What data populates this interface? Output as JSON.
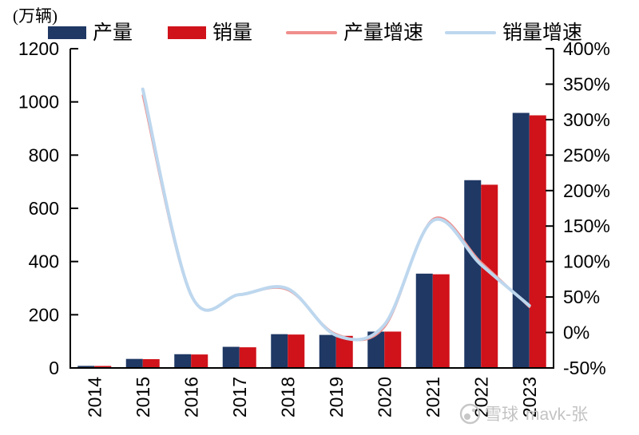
{
  "unit_label": "(万辆)",
  "legend": {
    "items": [
      {
        "label": "产量",
        "type": "bar",
        "color": "#1f3864"
      },
      {
        "label": "销量",
        "type": "bar",
        "color": "#d0121a"
      },
      {
        "label": "产量增速",
        "type": "line",
        "color": "#ef8f8c"
      },
      {
        "label": "销量增速",
        "type": "line",
        "color": "#bdd7ee"
      }
    ]
  },
  "watermark": {
    "site": "雪球",
    "user": "mavk-张"
  },
  "chart_data": {
    "type": "bar",
    "subtype": "bar+line combo, dual axis",
    "title": "",
    "categories": [
      "2014",
      "2015",
      "2016",
      "2017",
      "2018",
      "2019",
      "2020",
      "2021",
      "2022",
      "2023"
    ],
    "bar_series": [
      {
        "name": "产量",
        "axis": "left",
        "color": "#1f3864",
        "values": [
          7.8,
          34.0,
          51.7,
          79.4,
          127.0,
          124.2,
          136.6,
          354.5,
          705.8,
          958.7
        ]
      },
      {
        "name": "销量",
        "axis": "left",
        "color": "#d0121a",
        "values": [
          7.5,
          33.1,
          50.7,
          77.7,
          125.6,
          120.6,
          136.7,
          352.1,
          688.7,
          949.5
        ]
      }
    ],
    "line_series": [
      {
        "name": "产量增速",
        "axis": "right",
        "color": "#ef8f8c",
        "stroke_width": 2.6,
        "values_pct": [
          null,
          334,
          51.7,
          53.8,
          59.9,
          -2.2,
          7.5,
          159.5,
          99.1,
          35.8
        ]
      },
      {
        "name": "销量增速",
        "axis": "right",
        "color": "#bdd7ee",
        "stroke_width": 4,
        "values_pct": [
          null,
          343,
          53.0,
          53.3,
          61.7,
          -4.0,
          10.9,
          157.5,
          95.6,
          37.9
        ]
      }
    ],
    "left_axis": {
      "unit": "万辆",
      "min": 0,
      "max": 1200,
      "tick_labels": [
        "0",
        "200",
        "400",
        "600",
        "800",
        "1000",
        "1200"
      ]
    },
    "right_axis": {
      "min": -50,
      "max": 400,
      "tick_labels": [
        "-50%",
        "0%",
        "50%",
        "100%",
        "150%",
        "200%",
        "250%",
        "300%",
        "350%",
        "400%"
      ]
    },
    "legend_position": "top",
    "grid": false,
    "smooth_lines": true,
    "x_labels_rotated_deg": -90
  }
}
